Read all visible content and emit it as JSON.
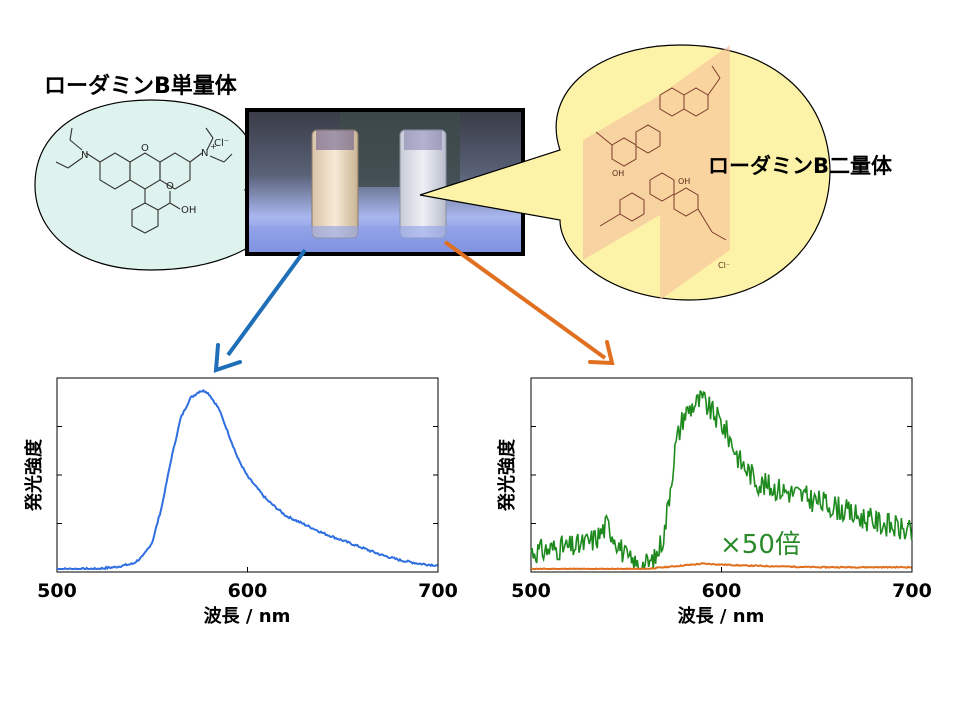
{
  "labels": {
    "monomer": "ローダミンB単量体",
    "dimer": "ローダミンB二量体",
    "multiplier": "×50倍"
  },
  "structure_text": {
    "n_left": "N",
    "n_right": "N",
    "plus": "+",
    "cl": "Cl⁻",
    "o_ring": "O",
    "oh": "OH",
    "o_carbonyl": "O"
  },
  "colors": {
    "monomer_bubble": "#dff3ee",
    "dimer_bubble": "#fdf3a8",
    "blue_arrow": "#1f6fb8",
    "orange_arrow": "#e0701f",
    "blue_line": "#2f6fe0",
    "green_line": "#1e8a1e",
    "orange_line": "#e0701f",
    "multiplier_text": "#2a8a2a"
  },
  "chart_data": [
    {
      "type": "line",
      "xlabel": "波長 / nm",
      "ylabel": "発光強度",
      "xlim": [
        500,
        700
      ],
      "xticks": [
        "500",
        "600",
        "700"
      ],
      "series": [
        {
          "x": [
            500,
            520,
            530,
            540,
            545,
            550,
            555,
            560,
            565,
            570,
            575,
            578,
            580,
            585,
            590,
            595,
            600,
            610,
            620,
            630,
            640,
            650,
            660,
            670,
            680,
            690,
            700
          ],
          "y": [
            0.0,
            0.0,
            0.01,
            0.03,
            0.07,
            0.15,
            0.35,
            0.62,
            0.85,
            0.96,
            1.0,
            1.0,
            0.98,
            0.9,
            0.76,
            0.62,
            0.52,
            0.39,
            0.3,
            0.25,
            0.2,
            0.16,
            0.12,
            0.08,
            0.05,
            0.03,
            0.02
          ]
        }
      ]
    },
    {
      "type": "line",
      "xlabel": "波長 / nm",
      "ylabel": "発光強度",
      "xlim": [
        500,
        700
      ],
      "xticks": [
        "500",
        "600",
        "700"
      ],
      "series": [
        {
          "x": [
            500,
            505,
            510,
            515,
            520,
            525,
            530,
            535,
            540,
            545,
            550,
            555,
            560,
            565,
            570,
            573,
            576,
            580,
            585,
            590,
            595,
            600,
            605,
            610,
            620,
            630,
            640,
            650,
            660,
            670,
            680,
            690,
            700
          ],
          "y": [
            0.1,
            0.1,
            0.11,
            0.12,
            0.12,
            0.13,
            0.15,
            0.18,
            0.25,
            0.16,
            0.06,
            0.02,
            0.02,
            0.05,
            0.2,
            0.45,
            0.7,
            0.86,
            0.92,
            0.95,
            0.88,
            0.82,
            0.72,
            0.6,
            0.48,
            0.45,
            0.42,
            0.38,
            0.35,
            0.3,
            0.27,
            0.24,
            0.2
          ]
        },
        {
          "x": [
            500,
            560,
            570,
            580,
            590,
            600,
            610,
            630,
            650,
            700
          ],
          "y": [
            0.0,
            0.0,
            0.01,
            0.02,
            0.03,
            0.025,
            0.02,
            0.015,
            0.01,
            0.01
          ]
        }
      ]
    }
  ]
}
